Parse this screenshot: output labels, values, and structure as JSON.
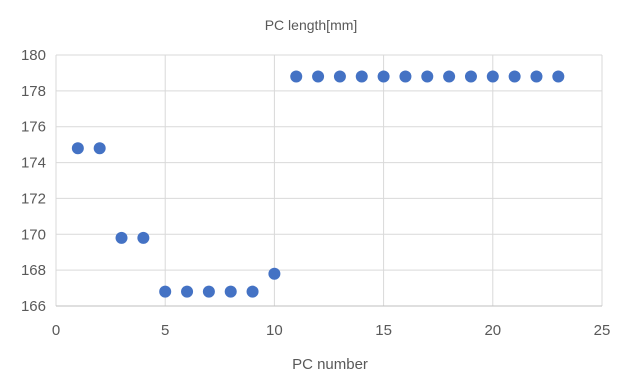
{
  "chart_data": {
    "type": "scatter",
    "title": "PC length[mm]",
    "xlabel": "PC number",
    "ylabel": "",
    "xlim": [
      0,
      25
    ],
    "ylim": [
      166,
      180
    ],
    "xticks": [
      "0",
      "5",
      "10",
      "15",
      "20",
      "25"
    ],
    "yticks": [
      "166",
      "168",
      "170",
      "172",
      "174",
      "176",
      "178",
      "180"
    ],
    "grid": true,
    "legend": "none",
    "series": [
      {
        "color": "#4472C4",
        "x": [
          1,
          2,
          3,
          4,
          5,
          6,
          7,
          8,
          9,
          10,
          11,
          12,
          13,
          14,
          15,
          16,
          17,
          18,
          19,
          20,
          21,
          22,
          23
        ],
        "y": [
          174.8,
          174.8,
          169.8,
          169.8,
          166.8,
          166.8,
          166.8,
          166.8,
          166.8,
          167.8,
          178.8,
          178.8,
          178.8,
          178.8,
          178.8,
          178.8,
          178.8,
          178.8,
          178.8,
          178.8,
          178.8,
          178.8,
          178.8
        ]
      }
    ]
  }
}
